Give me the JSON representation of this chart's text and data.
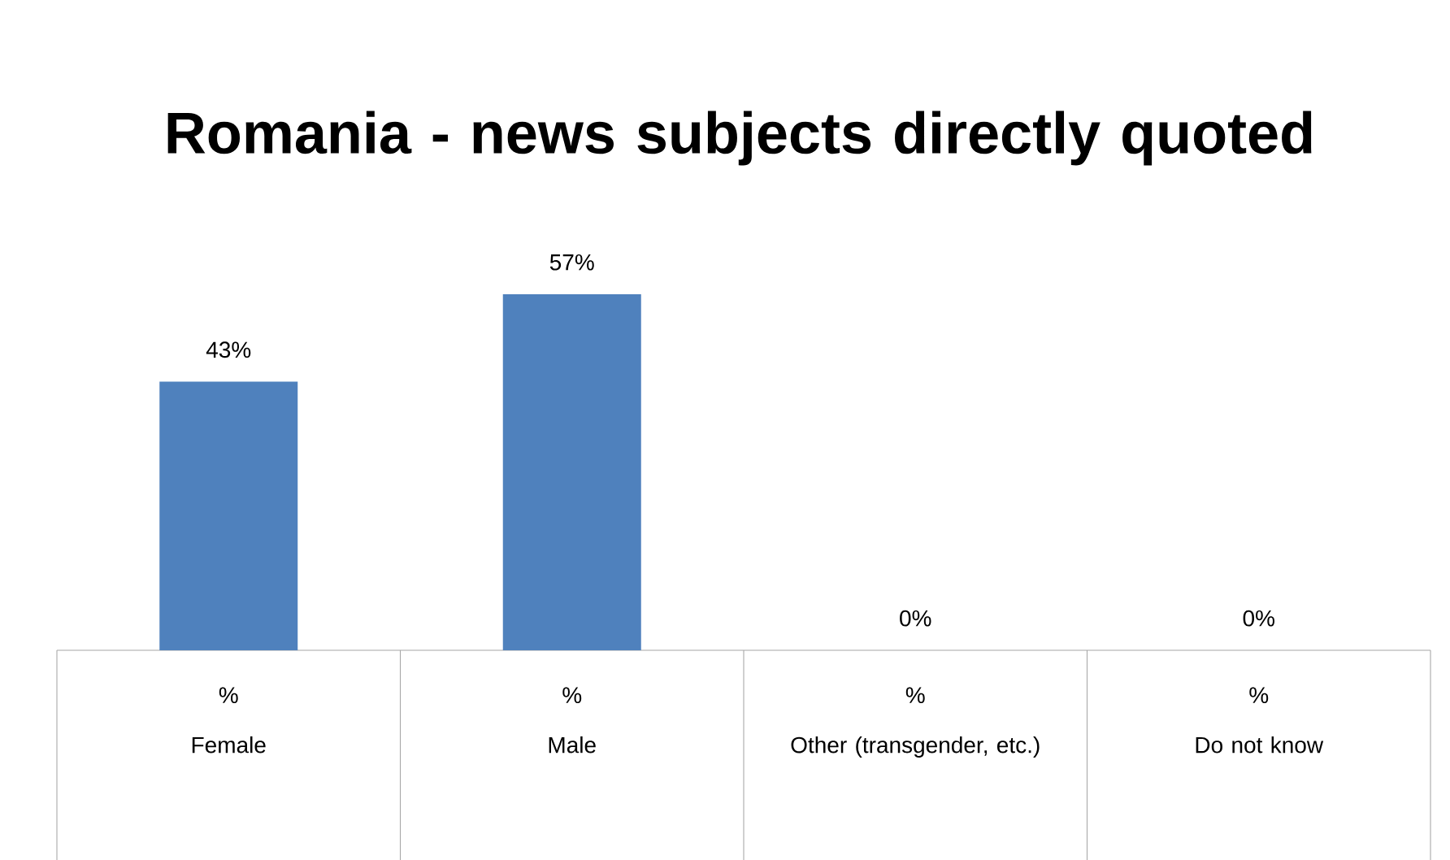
{
  "chart_data": {
    "type": "bar",
    "title": "Romania - news subjects directly quoted",
    "categories": [
      "Female",
      "Male",
      "Other (transgender, etc.)",
      "Do not know"
    ],
    "series": [
      {
        "name": "%",
        "color": "#4f81bd",
        "values": [
          43,
          57,
          0,
          0
        ],
        "value_labels": [
          "43%",
          "57%",
          "0%",
          "0%"
        ]
      }
    ]
  }
}
